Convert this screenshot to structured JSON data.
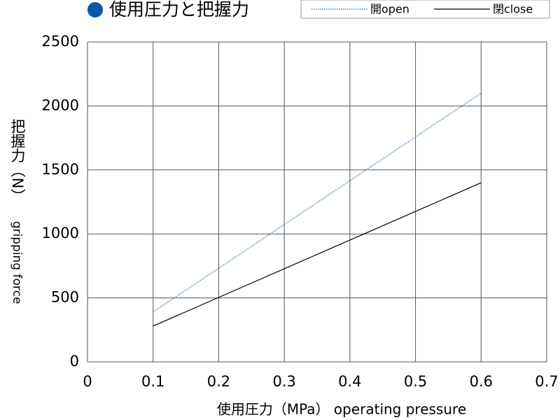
{
  "chart_data": {
    "type": "line",
    "title": "使用圧力と把握力",
    "xlabel": "使用圧力（MPa） operating pressure",
    "ylabel": "把握力（N）",
    "ylabel_en": "gripping force",
    "x": [
      0.1,
      0.2,
      0.3,
      0.4,
      0.5,
      0.6
    ],
    "series": [
      {
        "name": "開open",
        "color": "#1f6fb5",
        "dash": "dotted",
        "values": [
          390,
          732,
          1074,
          1416,
          1758,
          2100
        ]
      },
      {
        "name": "閉close",
        "color": "#000000",
        "dash": "solid",
        "values": [
          280,
          504,
          728,
          952,
          1176,
          1400
        ]
      }
    ],
    "xlim": [
      0,
      0.7
    ],
    "xticks": [
      0,
      0.1,
      0.2,
      0.3,
      0.4,
      0.5,
      0.6,
      0.7
    ],
    "ylim": [
      0,
      2500
    ],
    "yticks": [
      0,
      500,
      1000,
      1500,
      2000,
      2500
    ],
    "grid": true
  }
}
